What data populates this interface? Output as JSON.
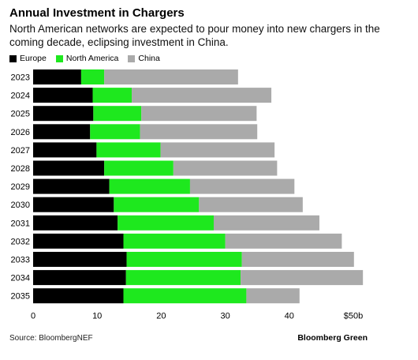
{
  "header": {
    "title": "Annual Investment in Chargers",
    "subtitle": "North American networks are expected to pour money into new chargers in the coming decade, eclipsing investment in China."
  },
  "footer": {
    "source": "Source: BloombergNEF",
    "brand": "Bloomberg Green"
  },
  "chart_data": {
    "type": "bar",
    "orientation": "horizontal",
    "stacked": true,
    "categories": [
      "2023",
      "2024",
      "2025",
      "2026",
      "2027",
      "2028",
      "2029",
      "2030",
      "2031",
      "2032",
      "2033",
      "2034",
      "2035"
    ],
    "series": [
      {
        "name": "Europe",
        "color": "#000000",
        "values": [
          7.5,
          9.3,
          9.4,
          8.9,
          9.9,
          11.1,
          11.9,
          12.6,
          13.2,
          14.1,
          14.6,
          14.5,
          14.1
        ]
      },
      {
        "name": "North America",
        "color": "#1ee81e",
        "values": [
          3.6,
          6.1,
          7.5,
          7.8,
          10.0,
          10.8,
          12.6,
          13.3,
          15.0,
          15.9,
          18.0,
          17.9,
          19.2
        ]
      },
      {
        "name": "China",
        "color": "#aaaaaa",
        "values": [
          20.9,
          21.8,
          18.0,
          18.3,
          17.8,
          16.2,
          16.3,
          16.2,
          16.5,
          18.2,
          17.5,
          19.1,
          8.3
        ]
      }
    ],
    "xlim": [
      0,
      50
    ],
    "xticks": [
      "0",
      "10",
      "20",
      "30",
      "40",
      "$50b"
    ],
    "xtick_values": [
      0,
      10,
      20,
      30,
      40,
      50
    ],
    "legend": "top-left",
    "grid": false
  }
}
